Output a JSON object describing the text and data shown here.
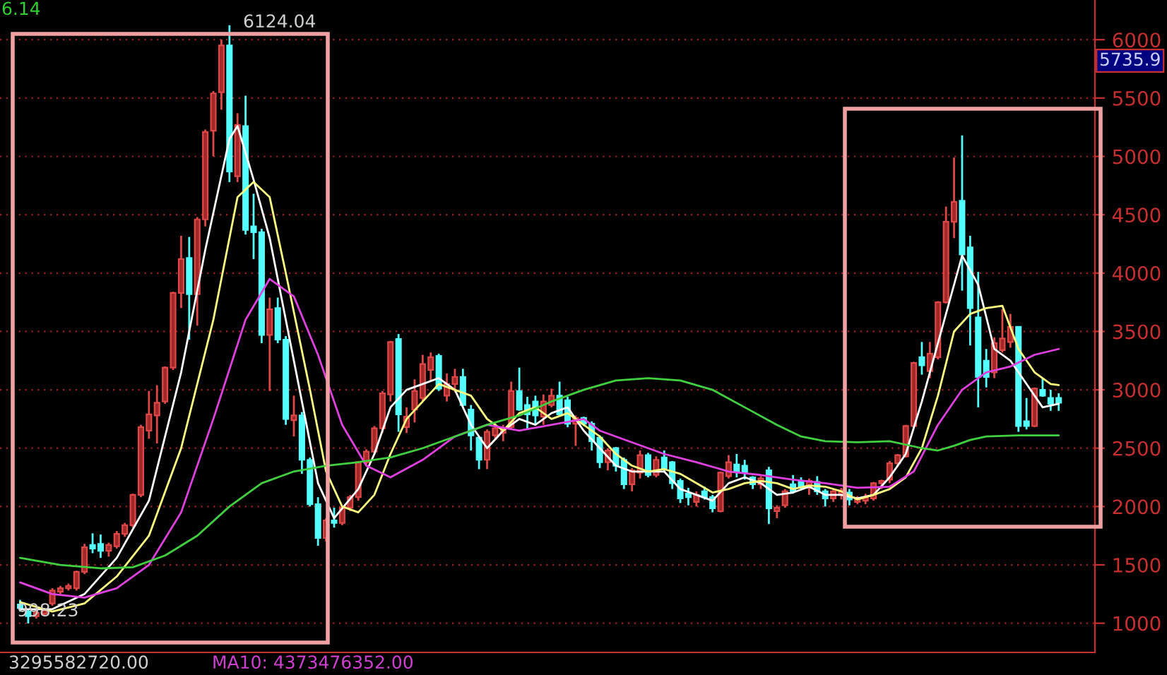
{
  "chart_data": {
    "type": "candlestick",
    "categories": [
      null,
      null,
      null,
      null,
      null,
      null,
      null,
      null,
      null,
      null,
      null,
      null,
      null,
      null,
      null,
      null,
      null,
      null,
      null,
      null,
      null,
      null,
      null,
      null,
      null,
      null,
      null,
      null,
      null,
      null,
      null,
      null,
      null,
      null,
      null,
      null,
      null,
      null,
      null,
      null,
      null,
      null,
      null,
      null,
      null,
      null,
      null,
      null,
      null,
      null,
      null,
      null,
      null,
      null,
      null,
      null,
      null,
      null,
      null,
      null,
      null,
      null,
      null,
      null,
      null,
      null,
      null,
      null,
      null,
      null,
      null,
      null,
      null,
      null,
      null,
      null,
      null,
      null,
      null,
      null,
      null,
      null,
      null,
      null,
      null,
      null,
      null,
      null,
      null,
      null,
      null,
      null,
      null,
      null,
      null,
      null,
      null,
      null,
      null,
      null,
      null,
      null,
      null,
      null,
      null,
      null,
      null,
      null,
      null,
      null,
      null,
      null,
      null,
      null,
      null,
      null,
      null,
      null,
      null,
      null,
      null,
      null,
      null,
      null,
      null,
      null,
      null,
      null,
      null,
      null
    ],
    "ohlc": [
      [
        1160,
        1200,
        1100,
        1130
      ],
      [
        1100,
        1120,
        998.23,
        1060
      ],
      [
        1060,
        1110,
        1040,
        1090
      ],
      [
        1080,
        1130,
        1060,
        1110
      ],
      [
        1170,
        1300,
        1150,
        1280
      ],
      [
        1270,
        1320,
        1250,
        1300
      ],
      [
        1300,
        1340,
        1280,
        1320
      ],
      [
        1300,
        1450,
        1280,
        1440
      ],
      [
        1440,
        1680,
        1420,
        1650
      ],
      [
        1670,
        1770,
        1600,
        1640
      ],
      [
        1680,
        1760,
        1560,
        1620
      ],
      [
        1620,
        1690,
        1570,
        1670
      ],
      [
        1660,
        1790,
        1640,
        1765
      ],
      [
        1765,
        1860,
        1740,
        1840
      ],
      [
        1840,
        2110,
        1820,
        2100
      ],
      [
        2100,
        2700,
        2080,
        2680
      ],
      [
        2650,
        2990,
        2580,
        2790
      ],
      [
        2780,
        3040,
        2540,
        2890
      ],
      [
        2900,
        3200,
        2880,
        3190
      ],
      [
        3190,
        3840,
        3170,
        3830
      ],
      [
        3830,
        4320,
        3700,
        4120
      ],
      [
        4130,
        4310,
        3430,
        3820
      ],
      [
        3820,
        4480,
        3550,
        4460
      ],
      [
        4460,
        5230,
        4400,
        5210
      ],
      [
        5220,
        5560,
        5000,
        5540
      ],
      [
        5550,
        6000,
        5400,
        5950
      ],
      [
        5950,
        6124.04,
        4780,
        4870
      ],
      [
        4830,
        5370,
        4780,
        5270
      ],
      [
        5260,
        5520,
        4330,
        4370
      ],
      [
        4400,
        4680,
        4120,
        4350
      ],
      [
        4350,
        4380,
        3400,
        3470
      ],
      [
        3470,
        3790,
        2990,
        3690
      ],
      [
        3700,
        3790,
        3400,
        3430
      ],
      [
        3430,
        3460,
        2700,
        2750
      ],
      [
        2740,
        2950,
        2600,
        2780
      ],
      [
        2780,
        2810,
        2280,
        2400
      ],
      [
        2400,
        2420,
        2000,
        2020
      ],
      [
        2020,
        2080,
        1664,
        1730
      ],
      [
        1730,
        1900,
        1700,
        1880
      ],
      [
        1880,
        1990,
        1820,
        1860
      ],
      [
        1860,
        2000,
        1840,
        1990
      ],
      [
        1990,
        2100,
        1960,
        2080
      ],
      [
        2080,
        2390,
        2050,
        2380
      ],
      [
        2380,
        2490,
        2360,
        2470
      ],
      [
        2470,
        2690,
        2450,
        2670
      ],
      [
        2670,
        2990,
        2630,
        2970
      ],
      [
        2960,
        3420,
        2900,
        3410
      ],
      [
        3435,
        3478,
        2640,
        2790
      ],
      [
        2680,
        2850,
        2630,
        2770
      ],
      [
        2830,
        3090,
        2720,
        2990
      ],
      [
        2930,
        3300,
        2900,
        3220
      ],
      [
        3170,
        3320,
        3080,
        3280
      ],
      [
        3290,
        3310,
        2990,
        3010
      ],
      [
        2950,
        3140,
        2900,
        3050
      ],
      [
        3050,
        3180,
        2980,
        3110
      ],
      [
        3110,
        3180,
        2860,
        2870
      ],
      [
        2830,
        2870,
        2480,
        2610
      ],
      [
        2590,
        2600,
        2320,
        2400
      ],
      [
        2400,
        2660,
        2320,
        2640
      ],
      [
        2610,
        2720,
        2580,
        2670
      ],
      [
        2630,
        2700,
        2560,
        2660
      ],
      [
        2680,
        3070,
        2660,
        2990
      ],
      [
        2990,
        3190,
        2820,
        2830
      ],
      [
        2870,
        2940,
        2660,
        2790
      ],
      [
        2900,
        2950,
        2700,
        2780
      ],
      [
        2770,
        2960,
        2700,
        2900
      ],
      [
        2870,
        3010,
        2850,
        2950
      ],
      [
        2950,
        3070,
        2780,
        2790
      ],
      [
        2910,
        2940,
        2680,
        2710
      ],
      [
        2710,
        2780,
        2520,
        2760
      ],
      [
        2760,
        2770,
        2690,
        2710
      ],
      [
        2710,
        2730,
        2480,
        2560
      ],
      [
        2590,
        2610,
        2330,
        2380
      ],
      [
        2380,
        2500,
        2310,
        2480
      ],
      [
        2500,
        2510,
        2300,
        2350
      ],
      [
        2400,
        2420,
        2150,
        2190
      ],
      [
        2190,
        2330,
        2130,
        2310
      ],
      [
        2290,
        2480,
        2240,
        2440
      ],
      [
        2440,
        2460,
        2250,
        2270
      ],
      [
        2270,
        2430,
        2250,
        2400
      ],
      [
        2420,
        2480,
        2300,
        2330
      ],
      [
        2380,
        2390,
        2150,
        2200
      ],
      [
        2220,
        2240,
        2030,
        2070
      ],
      [
        2110,
        2160,
        2010,
        2080
      ],
      [
        2040,
        2130,
        2000,
        2100
      ],
      [
        2130,
        2170,
        2060,
        2080
      ],
      [
        2080,
        2100,
        1950,
        1985
      ],
      [
        1960,
        2300,
        1950,
        2290
      ],
      [
        2260,
        2440,
        2240,
        2380
      ],
      [
        2360,
        2450,
        2250,
        2300
      ],
      [
        2350,
        2400,
        2230,
        2290
      ],
      [
        2250,
        2260,
        2150,
        2190
      ],
      [
        2190,
        2260,
        2150,
        2240
      ],
      [
        2310,
        2340,
        1850,
        1985
      ],
      [
        1960,
        2010,
        1900,
        1990
      ],
      [
        2010,
        2150,
        1990,
        2130
      ],
      [
        2190,
        2270,
        2110,
        2130
      ],
      [
        2220,
        2250,
        2140,
        2160
      ],
      [
        2160,
        2240,
        2100,
        2220
      ],
      [
        2210,
        2260,
        2100,
        2130
      ],
      [
        2130,
        2150,
        2000,
        2070
      ],
      [
        2070,
        2140,
        2040,
        2130
      ],
      [
        2100,
        2160,
        2060,
        2140
      ],
      [
        2120,
        2150,
        2010,
        2060
      ],
      [
        2040,
        2090,
        2020,
        2070
      ],
      [
        2050,
        2110,
        2020,
        2080
      ],
      [
        2070,
        2210,
        2050,
        2200
      ],
      [
        2200,
        2230,
        2150,
        2220
      ],
      [
        2230,
        2390,
        2200,
        2370
      ],
      [
        2370,
        2450,
        2340,
        2440
      ],
      [
        2430,
        2700,
        2420,
        2690
      ],
      [
        2690,
        3240,
        2680,
        3230
      ],
      [
        3280,
        3410,
        3130,
        3210
      ],
      [
        3160,
        3410,
        3100,
        3310
      ],
      [
        3280,
        3760,
        3260,
        3750
      ],
      [
        3750,
        4570,
        3740,
        4440
      ],
      [
        4440,
        4990,
        4300,
        4610
      ],
      [
        4620,
        5180,
        3850,
        4160
      ],
      [
        4220,
        4320,
        3380,
        3700
      ],
      [
        3620,
        4010,
        2850,
        3110
      ],
      [
        3250,
        3350,
        3020,
        3110
      ],
      [
        3150,
        3450,
        3100,
        3400
      ],
      [
        3340,
        3690,
        3320,
        3440
      ],
      [
        3410,
        3650,
        3360,
        3540
      ],
      [
        3540,
        3540,
        2640,
        2690
      ],
      [
        2730,
        2930,
        2660,
        2690
      ],
      [
        2690,
        3020,
        2680,
        3010
      ],
      [
        3000,
        3100,
        2940,
        2950
      ],
      [
        2930,
        3000,
        2820,
        2880
      ],
      [
        2930,
        2970,
        2820,
        2890
      ]
    ],
    "series": [
      {
        "type": "line",
        "color": "#ffffff",
        "values": [
          1120,
          null,
          null,
          null,
          1120,
          null,
          null,
          null,
          1250,
          null,
          null,
          null,
          1560,
          null,
          null,
          null,
          2050,
          null,
          null,
          null,
          3150,
          null,
          null,
          4200,
          null,
          null,
          5150,
          5260,
          null,
          4800,
          null,
          4300,
          null,
          3600,
          null,
          2900,
          null,
          2200,
          null,
          1900,
          null,
          null,
          2150,
          null,
          2450,
          null,
          2850,
          null,
          3000,
          null,
          3050,
          null,
          3100,
          null,
          3000,
          null,
          2700,
          null,
          2500,
          null,
          2650,
          null,
          2750,
          null,
          2700,
          null,
          2800,
          null,
          2850,
          null,
          2650,
          null,
          2500,
          null,
          2350,
          null,
          2300,
          null,
          2300,
          null,
          2300,
          null,
          2150,
          null,
          2100,
          null,
          2050,
          null,
          2200,
          null,
          2250,
          null,
          2200,
          null,
          2100,
          null,
          2120,
          null,
          2170,
          null,
          2100,
          null,
          2100,
          null,
          2070,
          null,
          2100,
          null,
          2250,
          null,
          2450,
          null,
          2900,
          null,
          3400,
          null,
          null,
          4150,
          null,
          3900,
          null,
          3350,
          null,
          3250,
          null,
          3050,
          null,
          2850,
          null,
          2880
        ]
      },
      {
        "type": "line",
        "color": "#ffff80",
        "values": [
          1180,
          null,
          null,
          null,
          1100,
          null,
          null,
          null,
          1170,
          null,
          null,
          null,
          1400,
          null,
          null,
          null,
          1750,
          null,
          null,
          null,
          2500,
          null,
          null,
          null,
          3600,
          null,
          null,
          4650,
          null,
          4780,
          null,
          4650,
          null,
          4000,
          null,
          null,
          3000,
          null,
          2300,
          null,
          2000,
          null,
          1950,
          null,
          2100,
          null,
          2450,
          null,
          2750,
          null,
          2900,
          null,
          3050,
          null,
          3000,
          null,
          2950,
          null,
          2750,
          null,
          2650,
          null,
          2800,
          null,
          2850,
          null,
          2750,
          null,
          2800,
          null,
          2700,
          null,
          2600,
          null,
          2450,
          null,
          2350,
          null,
          2300,
          null,
          2320,
          null,
          2280,
          null,
          2200,
          null,
          2120,
          null,
          2150,
          null,
          2200,
          null,
          2220,
          null,
          2200,
          null,
          2150,
          null,
          2180,
          null,
          2170,
          null,
          2130,
          null,
          2060,
          null,
          2100,
          null,
          2150,
          null,
          2250,
          null,
          2500,
          null,
          2950,
          null,
          3500,
          null,
          3650,
          null,
          3700,
          null,
          3720,
          null,
          3350,
          null,
          3150,
          null,
          3050,
          3040
        ]
      },
      {
        "type": "line",
        "color": "#e040e0",
        "values": [
          1350,
          null,
          null,
          null,
          1250,
          null,
          null,
          null,
          1220,
          null,
          null,
          null,
          1300,
          null,
          null,
          null,
          1500,
          null,
          null,
          null,
          1950,
          null,
          null,
          null,
          2750,
          null,
          null,
          null,
          3600,
          null,
          null,
          3950,
          null,
          null,
          3800,
          null,
          null,
          3300,
          null,
          null,
          2700,
          null,
          null,
          2350,
          null,
          null,
          2250,
          null,
          null,
          null,
          2400,
          null,
          null,
          null,
          2600,
          null,
          null,
          null,
          2700,
          null,
          null,
          null,
          2650,
          null,
          null,
          null,
          2700,
          null,
          null,
          null,
          2750,
          null,
          2650,
          null,
          null,
          null,
          2550,
          null,
          null,
          null,
          2450,
          null,
          null,
          null,
          2380,
          null,
          null,
          null,
          2300,
          null,
          null,
          null,
          2270,
          null,
          null,
          null,
          2230,
          null,
          null,
          null,
          2200,
          null,
          null,
          null,
          2160,
          null,
          null,
          null,
          2170,
          null,
          null,
          2300,
          null,
          null,
          2700,
          null,
          null,
          3000,
          null,
          null,
          3150,
          null,
          null,
          3200,
          null,
          null,
          3300,
          null,
          null,
          3350
        ]
      },
      {
        "type": "line",
        "color": "#40d040",
        "values": [
          1560,
          null,
          null,
          null,
          null,
          1500,
          null,
          null,
          null,
          null,
          1470,
          null,
          null,
          null,
          1480,
          null,
          null,
          null,
          1580,
          null,
          null,
          null,
          1750,
          null,
          null,
          null,
          2000,
          null,
          null,
          null,
          2200,
          null,
          null,
          null,
          2300,
          null,
          null,
          null,
          2350,
          null,
          null,
          null,
          2380,
          null,
          null,
          null,
          2420,
          null,
          null,
          null,
          2500,
          null,
          null,
          null,
          2600,
          null,
          null,
          null,
          2700,
          null,
          null,
          null,
          2780,
          null,
          null,
          null,
          2900,
          null,
          null,
          null,
          3000,
          null,
          null,
          null,
          3080,
          null,
          null,
          null,
          3100,
          null,
          null,
          null,
          3080,
          null,
          null,
          null,
          3000,
          null,
          null,
          null,
          2850,
          null,
          null,
          null,
          2700,
          null,
          null,
          2600,
          null,
          null,
          2560,
          null,
          null,
          null,
          2550,
          null,
          null,
          null,
          2560,
          null,
          null,
          null,
          2500,
          null,
          2480,
          null,
          2520,
          null,
          2570,
          null,
          2600,
          null,
          null,
          null,
          2610,
          null,
          null,
          null,
          null,
          2610
        ]
      }
    ],
    "ylim": [
      750,
      6340
    ],
    "yticks": [
      1000,
      1500,
      2000,
      2500,
      3000,
      3500,
      4000,
      4500,
      5000,
      5500,
      6000
    ],
    "grid": "y",
    "tick_labels": "y",
    "annotations": [
      "6.14",
      "6124.04",
      "998.23",
      "5735.9",
      "3295582720.00",
      "MA10: 4373476352.00"
    ]
  }
}
